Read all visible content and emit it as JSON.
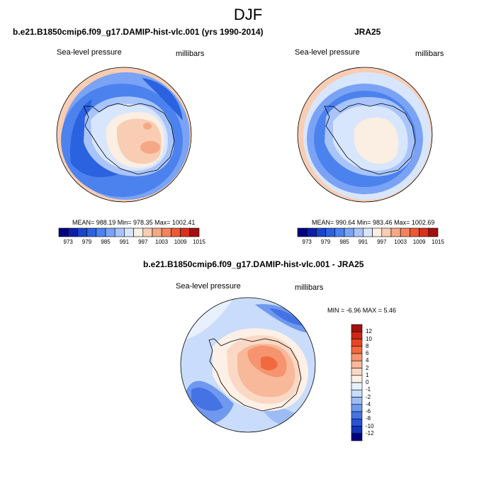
{
  "title": "DJF",
  "panels": [
    {
      "id": "model",
      "title": "b.e21.B1850cmip6.f09_g17.DAMIP-hist-vlc.001 (yrs 1990-2014)",
      "left_label": "Sea-level pressure",
      "right_label": "millibars",
      "stats": "MEAN= 988.19  Min= 978.35  Max= 1002.41"
    },
    {
      "id": "obs",
      "title": "JRA25",
      "left_label": "Sea-level pressure",
      "right_label": "millibars",
      "stats": "MEAN= 990.64  Min= 983.46  Max= 1002.69"
    },
    {
      "id": "diff",
      "title": "b.e21.B1850cmip6.f09_g17.DAMIP-hist-vlc.001 - JRA25",
      "left_label": "Sea-level pressure",
      "right_label": "millibars",
      "stats": "MIN =  -6.96 MAX =   5.46"
    }
  ],
  "colorbar_abs": {
    "colors": [
      "#00007f",
      "#0d1fa8",
      "#1a44cc",
      "#2a62e0",
      "#4c82ee",
      "#7aa3f5",
      "#a8c4fb",
      "#d8e6fd",
      "#fbeee2",
      "#f8cdb3",
      "#f5a885",
      "#f2835d",
      "#ec5a33",
      "#d8301d",
      "#a40f10"
    ],
    "ticks": [
      "973",
      "979",
      "985",
      "991",
      "997",
      "1003",
      "1009",
      "1015"
    ]
  },
  "colorbar_diff": {
    "colors": [
      "#a40f10",
      "#cc2717",
      "#e84520",
      "#f2683f",
      "#f5946f",
      "#f8b89a",
      "#fbd8c4",
      "#fdf0e6",
      "#e8f0fd",
      "#c9dcfb",
      "#9dbcf6",
      "#6f98ef",
      "#4573e3",
      "#2a51d6",
      "#1334b8",
      "#00007f"
    ],
    "ticks": [
      "12",
      "10",
      "8",
      "6",
      "4",
      "2",
      "1",
      "0",
      "-1",
      "-2",
      "-4",
      "-6",
      "-8",
      "-10",
      "-12"
    ]
  },
  "colors": {
    "coast": "#000000",
    "ocean_low": "#4c82ee",
    "land_high": "#f5a885"
  }
}
